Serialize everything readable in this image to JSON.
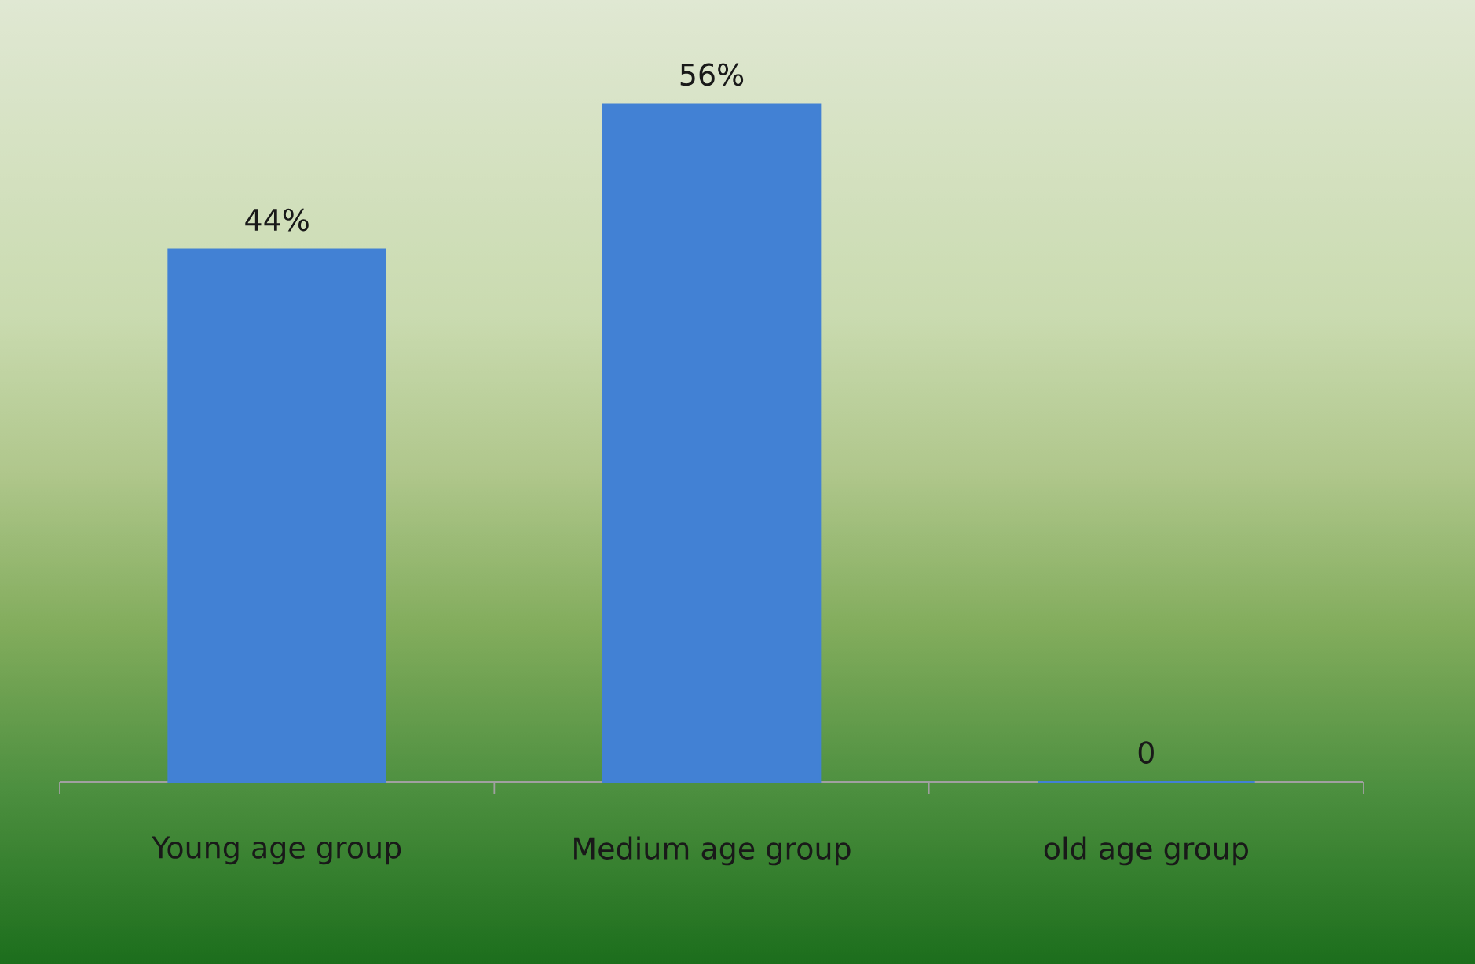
{
  "chart_data": {
    "type": "bar",
    "categories": [
      "Young age group",
      "Medium age group",
      "old age group"
    ],
    "values": [
      44,
      56,
      0
    ],
    "color": "#4281d4",
    "value_labels": [
      "44%",
      "56%",
      "0"
    ]
  }
}
